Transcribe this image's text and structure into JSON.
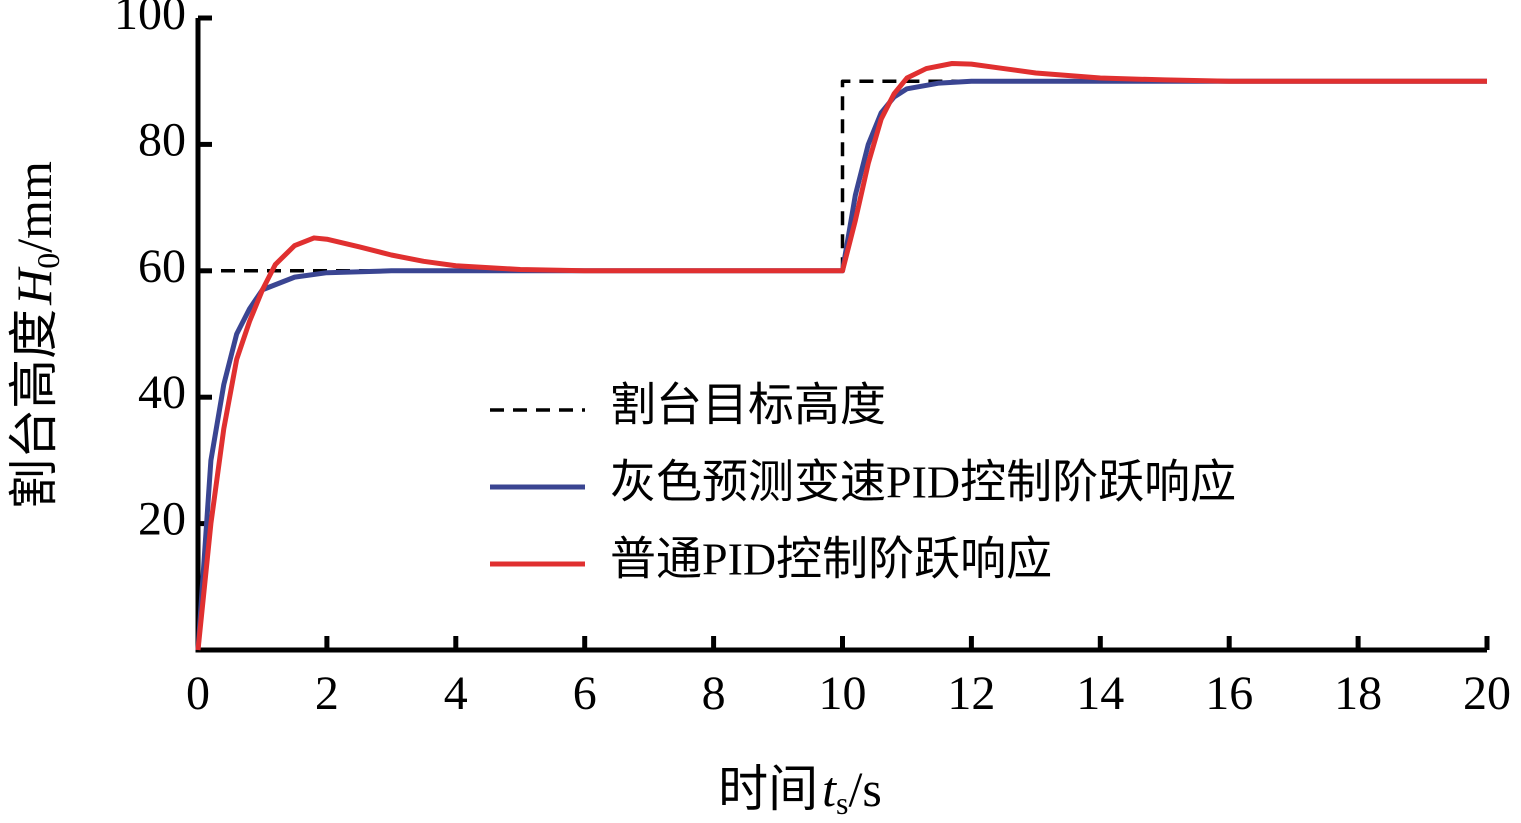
{
  "chart_data": {
    "type": "line",
    "xlabel": [
      "时间",
      "t",
      "s",
      "/s"
    ],
    "ylabel": [
      "割台高度",
      "H",
      "0",
      "/mm"
    ],
    "xlim": [
      0,
      20
    ],
    "xticks": [
      0,
      2,
      4,
      6,
      8,
      10,
      12,
      14,
      16,
      18,
      20
    ],
    "ylim": [
      0,
      100
    ],
    "yticks": [
      20,
      40,
      60,
      80,
      100
    ],
    "grid": false,
    "legend": "center",
    "series": [
      {
        "name": "割台目标高度",
        "color": "#000000",
        "dash": true,
        "x": [
          0,
          10,
          10,
          20
        ],
        "values": [
          60,
          60,
          90,
          90
        ]
      },
      {
        "name": "灰色预测变速PID控制阶跃响应",
        "color": "#3a4592",
        "dash": false,
        "x": [
          0,
          0.2,
          0.4,
          0.6,
          0.8,
          1.0,
          1.5,
          2,
          3,
          5,
          10,
          10.2,
          10.4,
          10.6,
          10.8,
          11,
          11.5,
          12,
          14,
          20
        ],
        "values": [
          0,
          30,
          42,
          50,
          54,
          57,
          59,
          59.7,
          60,
          60,
          60,
          72,
          80,
          85,
          87.5,
          88.8,
          89.7,
          90,
          90,
          90
        ]
      },
      {
        "name": "普通PID控制阶跃响应",
        "color": "#e03030",
        "dash": false,
        "x": [
          0,
          0.2,
          0.4,
          0.6,
          0.8,
          1.0,
          1.2,
          1.5,
          1.8,
          2,
          2.5,
          3,
          3.5,
          4,
          5,
          6,
          10,
          10.2,
          10.4,
          10.6,
          10.8,
          11,
          11.3,
          11.7,
          12,
          12.5,
          13,
          14,
          15,
          16,
          20
        ],
        "values": [
          0,
          20,
          35,
          46,
          52,
          57,
          61,
          64,
          65.2,
          65,
          63.8,
          62.5,
          61.5,
          60.8,
          60.2,
          60,
          60,
          68,
          77,
          84,
          88,
          90.5,
          92,
          92.8,
          92.7,
          92,
          91.3,
          90.5,
          90.2,
          90,
          90
        ]
      }
    ]
  }
}
